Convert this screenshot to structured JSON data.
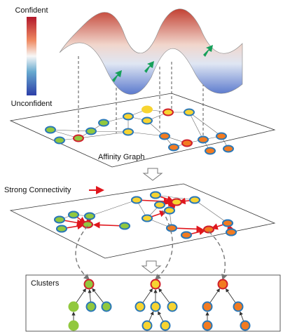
{
  "colorbar": {
    "top_label": "Confident",
    "bottom_label": "Unconfident"
  },
  "graph": {
    "label": "Affinity Graph"
  },
  "legend": {
    "label": "Strong Connectivity"
  },
  "clusters": {
    "title": "Clusters"
  }
}
